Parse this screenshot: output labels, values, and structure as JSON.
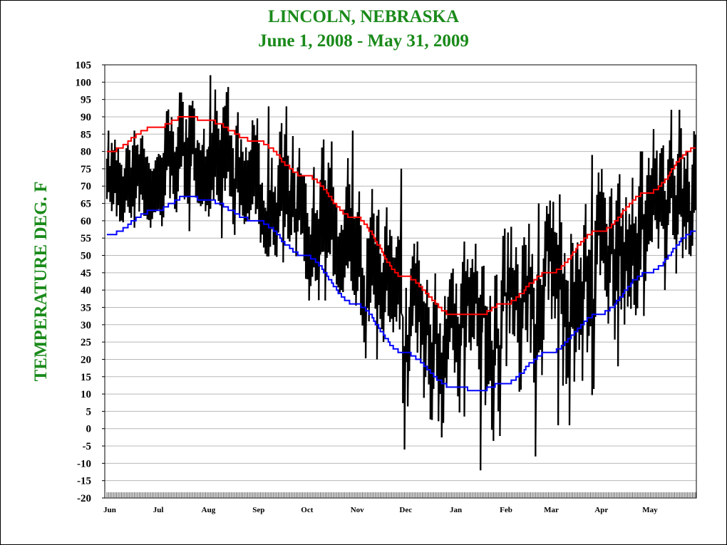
{
  "chart_data": {
    "type": "line",
    "title": "LINCOLN, NEBRASKA",
    "subtitle": "June 1, 2008 - May 31,  2009",
    "ylabel": "TEMPERATURE DEG. F",
    "xlabel": "",
    "ylim": [
      -20,
      105
    ],
    "yticks": [
      -20,
      -15,
      -10,
      -5,
      0,
      5,
      10,
      15,
      20,
      25,
      30,
      35,
      40,
      45,
      50,
      55,
      60,
      65,
      70,
      75,
      80,
      85,
      90,
      95,
      100,
      105
    ],
    "xlim": [
      "2008-06-01",
      "2009-05-31"
    ],
    "months": [
      {
        "label": "Jun",
        "start": "2008-06-01"
      },
      {
        "label": "Jul",
        "start": "2008-07-01"
      },
      {
        "label": "Aug",
        "start": "2008-08-01"
      },
      {
        "label": "Sep",
        "start": "2008-09-01"
      },
      {
        "label": "Oct",
        "start": "2008-10-01"
      },
      {
        "label": "Nov",
        "start": "2008-11-01"
      },
      {
        "label": "Dec",
        "start": "2008-12-01"
      },
      {
        "label": "Jan",
        "start": "2009-01-01"
      },
      {
        "label": "Feb",
        "start": "2009-02-01"
      },
      {
        "label": "Mar",
        "start": "2009-03-01"
      },
      {
        "label": "Apr",
        "start": "2009-04-01"
      },
      {
        "label": "May",
        "start": "2009-05-01"
      }
    ],
    "grid": {
      "horizontal": true,
      "vertical": false
    },
    "legend": "none",
    "series": [
      {
        "role": "observed daily temperature range (high/low bars)",
        "color": "#000000",
        "monthly_approx": [
          {
            "month": "Jun",
            "high": 86,
            "low": 58,
            "typical_high": 80,
            "typical_low": 64
          },
          {
            "month": "Jul",
            "high": 97,
            "low": 57,
            "typical_high": 86,
            "typical_low": 68
          },
          {
            "month": "Aug",
            "high": 102,
            "low": 55,
            "typical_high": 86,
            "typical_low": 66
          },
          {
            "month": "Sep",
            "high": 93,
            "low": 48,
            "typical_high": 77,
            "typical_low": 56
          },
          {
            "month": "Oct",
            "high": 86,
            "low": 37,
            "typical_high": 70,
            "typical_low": 46
          },
          {
            "month": "Nov",
            "high": 75,
            "low": 20,
            "typical_high": 55,
            "typical_low": 33
          },
          {
            "month": "Dec",
            "high": 54,
            "low": -6,
            "typical_high": 37,
            "typical_low": 16
          },
          {
            "month": "Jan",
            "high": 54,
            "low": -12,
            "typical_high": 36,
            "typical_low": 13
          },
          {
            "month": "Feb",
            "high": 65,
            "low": -8,
            "typical_high": 43,
            "typical_low": 20
          },
          {
            "month": "Mar",
            "high": 79,
            "low": 1,
            "typical_high": 55,
            "typical_low": 30
          },
          {
            "month": "Apr",
            "high": 80,
            "low": 18,
            "typical_high": 62,
            "typical_low": 38
          },
          {
            "month": "May",
            "high": 92,
            "low": 40,
            "typical_high": 74,
            "typical_low": 53
          }
        ]
      },
      {
        "role": "normal daily high",
        "color": "#ff0000",
        "x": [
          "2008-06-01",
          "2008-07-01",
          "2008-07-20",
          "2008-08-01",
          "2008-09-01",
          "2008-10-01",
          "2008-11-01",
          "2008-12-01",
          "2009-01-01",
          "2009-01-17",
          "2009-02-01",
          "2009-03-01",
          "2009-04-01",
          "2009-05-01",
          "2009-05-31"
        ],
        "y": [
          80,
          87,
          90,
          89,
          83,
          73,
          61,
          44,
          33,
          33,
          36,
          45,
          57,
          68,
          81
        ]
      },
      {
        "role": "normal daily low",
        "color": "#0000ff",
        "x": [
          "2008-06-01",
          "2008-07-01",
          "2008-07-20",
          "2008-08-01",
          "2008-09-01",
          "2008-10-01",
          "2008-11-01",
          "2008-12-01",
          "2009-01-01",
          "2009-01-17",
          "2009-02-01",
          "2009-03-01",
          "2009-04-01",
          "2009-05-01",
          "2009-05-31"
        ],
        "y": [
          56,
          63,
          67,
          66,
          60,
          50,
          36,
          22,
          12,
          11,
          13,
          22,
          33,
          45,
          57
        ]
      }
    ]
  }
}
